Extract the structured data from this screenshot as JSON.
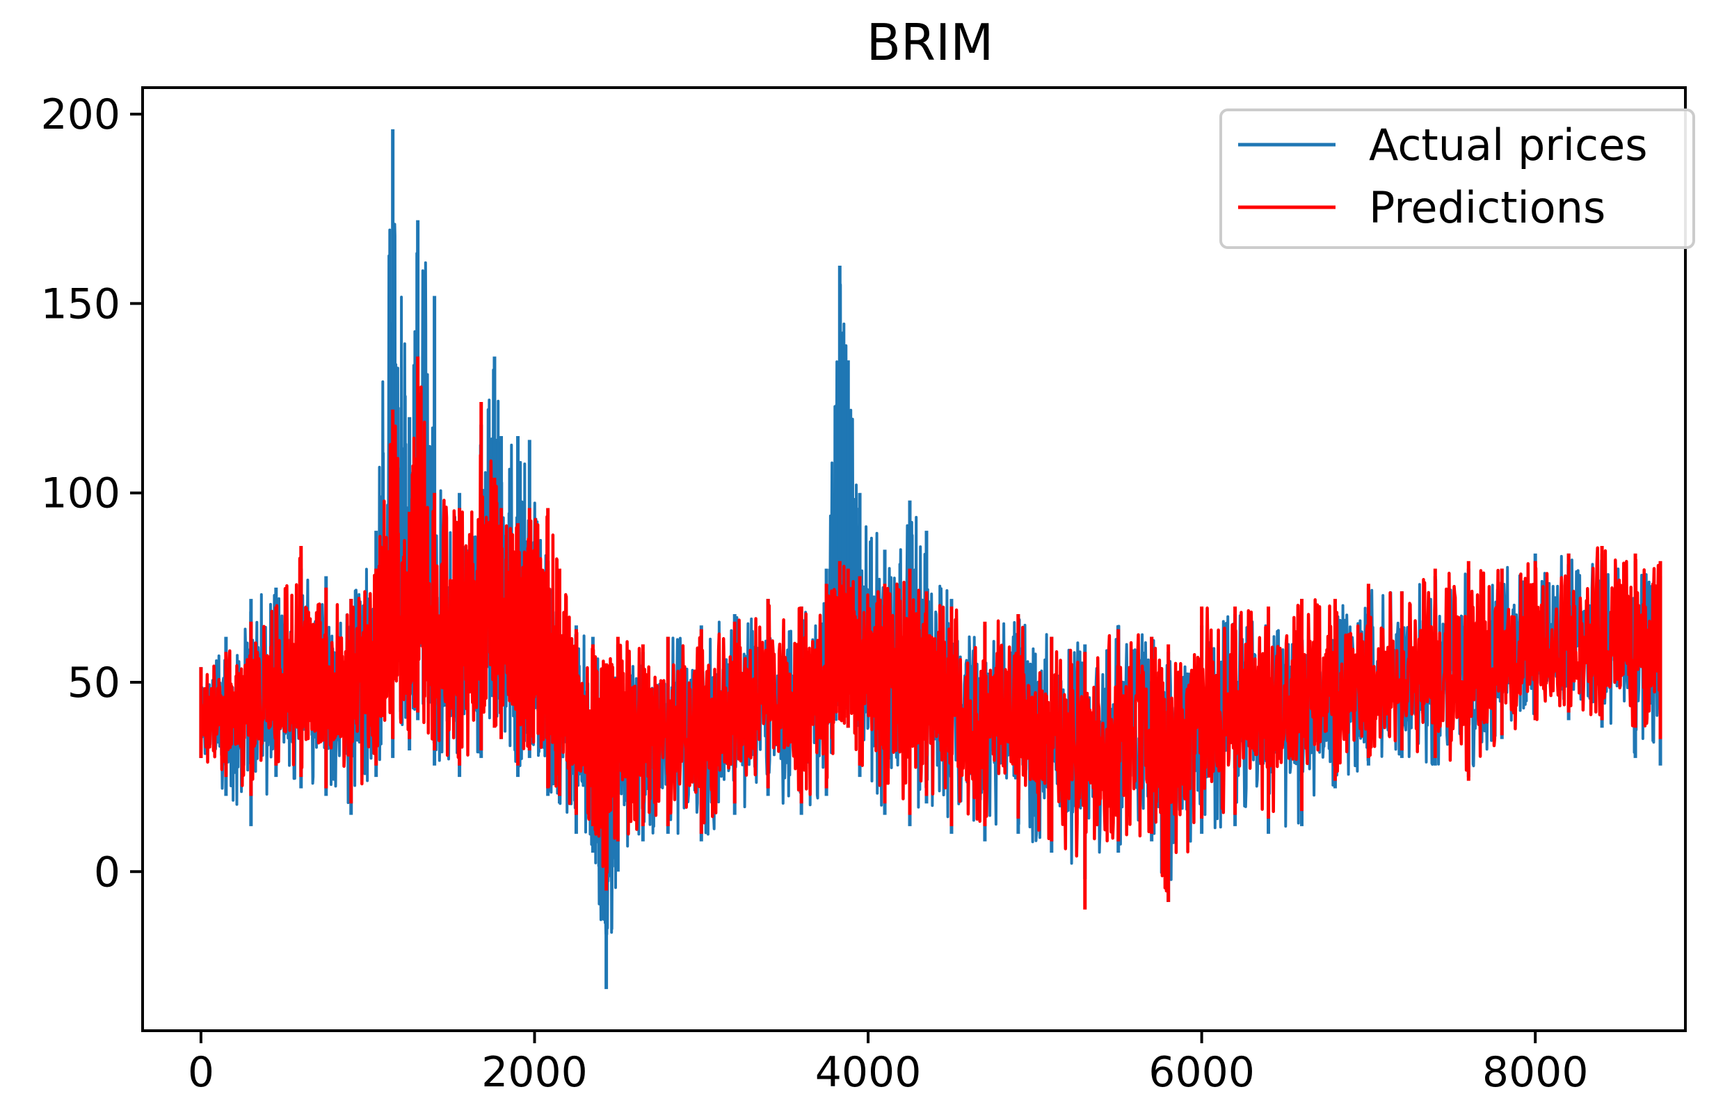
{
  "chart_data": {
    "type": "line",
    "title": "BRIM",
    "xlabel": "",
    "ylabel": "",
    "xlim": [
      -350,
      8900
    ],
    "ylim": [
      -42,
      207
    ],
    "xticks": [
      0,
      2000,
      4000,
      6000,
      8000
    ],
    "yticks": [
      0,
      50,
      100,
      150,
      200
    ],
    "grid": false,
    "legend": {
      "position": "top-right"
    },
    "x": [
      0,
      150,
      300,
      450,
      600,
      750,
      900,
      1050,
      1150,
      1250,
      1300,
      1400,
      1550,
      1680,
      1760,
      1800,
      1900,
      1970,
      2080,
      2150,
      2250,
      2350,
      2430,
      2500,
      2650,
      2800,
      3000,
      3200,
      3400,
      3600,
      3750,
      3830,
      3880,
      3950,
      4100,
      4250,
      4350,
      4500,
      4700,
      4900,
      5100,
      5300,
      5500,
      5700,
      5800,
      6000,
      6200,
      6400,
      6600,
      6800,
      7000,
      7200,
      7400,
      7600,
      7800,
      8000,
      8200,
      8400,
      8600,
      8750
    ],
    "series": [
      {
        "name": "Actual prices",
        "color": "#1f77b4",
        "values": [
          42,
          40,
          48,
          45,
          52,
          50,
          48,
          55,
          88,
          62,
          92,
          58,
          52,
          70,
          96,
          82,
          60,
          76,
          50,
          46,
          42,
          36,
          -8,
          40,
          38,
          40,
          36,
          42,
          48,
          44,
          50,
          108,
          90,
          62,
          52,
          58,
          56,
          44,
          42,
          44,
          36,
          34,
          38,
          38,
          32,
          42,
          44,
          44,
          46,
          48,
          50,
          50,
          52,
          52,
          56,
          58,
          60,
          62,
          62,
          60
        ],
        "low": [
          30,
          20,
          12,
          25,
          22,
          20,
          15,
          25,
          30,
          32,
          40,
          28,
          25,
          30,
          40,
          35,
          25,
          30,
          20,
          18,
          10,
          5,
          -31,
          0,
          8,
          10,
          8,
          15,
          20,
          15,
          20,
          45,
          38,
          25,
          15,
          12,
          18,
          10,
          8,
          10,
          5,
          -2,
          5,
          8,
          -8,
          10,
          12,
          10,
          12,
          22,
          28,
          30,
          28,
          25,
          35,
          40,
          40,
          38,
          30,
          28
        ],
        "high": [
          54,
          62,
          72,
          75,
          80,
          78,
          72,
          90,
          196,
          120,
          172,
          152,
          100,
          118,
          136,
          115,
          115,
          114,
          80,
          72,
          65,
          62,
          50,
          60,
          58,
          62,
          65,
          68,
          72,
          70,
          80,
          160,
          135,
          100,
          85,
          98,
          90,
          72,
          65,
          68,
          62,
          60,
          65,
          62,
          58,
          65,
          68,
          68,
          72,
          70,
          75,
          74,
          78,
          80,
          80,
          84,
          84,
          84,
          82,
          78
        ]
      },
      {
        "name": "Predictions",
        "color": "#ff0000",
        "values": [
          42,
          42,
          46,
          46,
          50,
          50,
          48,
          54,
          72,
          62,
          80,
          60,
          54,
          72,
          80,
          72,
          58,
          66,
          52,
          46,
          42,
          38,
          30,
          40,
          40,
          40,
          38,
          42,
          48,
          46,
          50,
          68,
          60,
          56,
          50,
          54,
          52,
          44,
          42,
          44,
          38,
          34,
          38,
          38,
          34,
          44,
          44,
          44,
          46,
          48,
          50,
          50,
          52,
          52,
          56,
          58,
          60,
          62,
          62,
          62
        ],
        "low": [
          30,
          25,
          20,
          28,
          25,
          22,
          18,
          28,
          35,
          35,
          42,
          32,
          28,
          32,
          38,
          35,
          28,
          32,
          22,
          20,
          15,
          12,
          -5,
          8,
          12,
          12,
          10,
          18,
          22,
          18,
          22,
          40,
          38,
          28,
          18,
          15,
          20,
          12,
          12,
          14,
          8,
          -10,
          8,
          10,
          -8,
          14,
          15,
          14,
          16,
          24,
          30,
          32,
          30,
          24,
          36,
          40,
          42,
          40,
          38,
          35
        ],
        "high": [
          54,
          58,
          66,
          70,
          86,
          75,
          72,
          80,
          122,
          95,
          136,
          100,
          96,
          124,
          104,
          96,
          92,
          96,
          96,
          80,
          64,
          60,
          55,
          62,
          60,
          62,
          64,
          66,
          72,
          70,
          76,
          82,
          80,
          78,
          76,
          80,
          74,
          70,
          66,
          68,
          62,
          58,
          64,
          62,
          60,
          70,
          70,
          70,
          72,
          72,
          76,
          74,
          80,
          82,
          80,
          82,
          84,
          86,
          84,
          82
        ]
      }
    ]
  }
}
